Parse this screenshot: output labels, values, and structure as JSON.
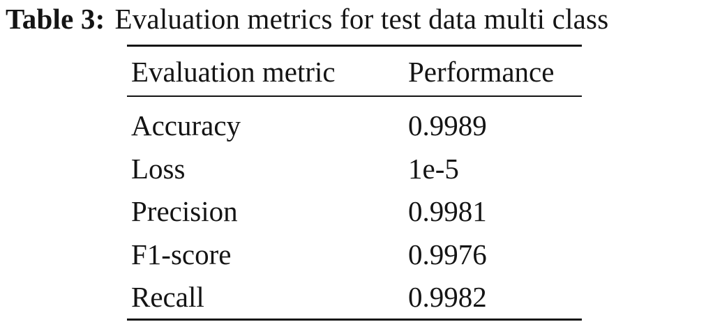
{
  "caption": {
    "label": "Table 3:",
    "text": "Evaluation metrics for test data multi class"
  },
  "table": {
    "headers": [
      "Evaluation metric",
      "Performance"
    ],
    "rows": [
      {
        "metric": "Accuracy",
        "performance": "0.9989"
      },
      {
        "metric": "Loss",
        "performance": "1e-5"
      },
      {
        "metric": "Precision",
        "performance": "0.9981"
      },
      {
        "metric": "F1-score",
        "performance": "0.9976"
      },
      {
        "metric": "Recall",
        "performance": "0.9982"
      }
    ]
  }
}
